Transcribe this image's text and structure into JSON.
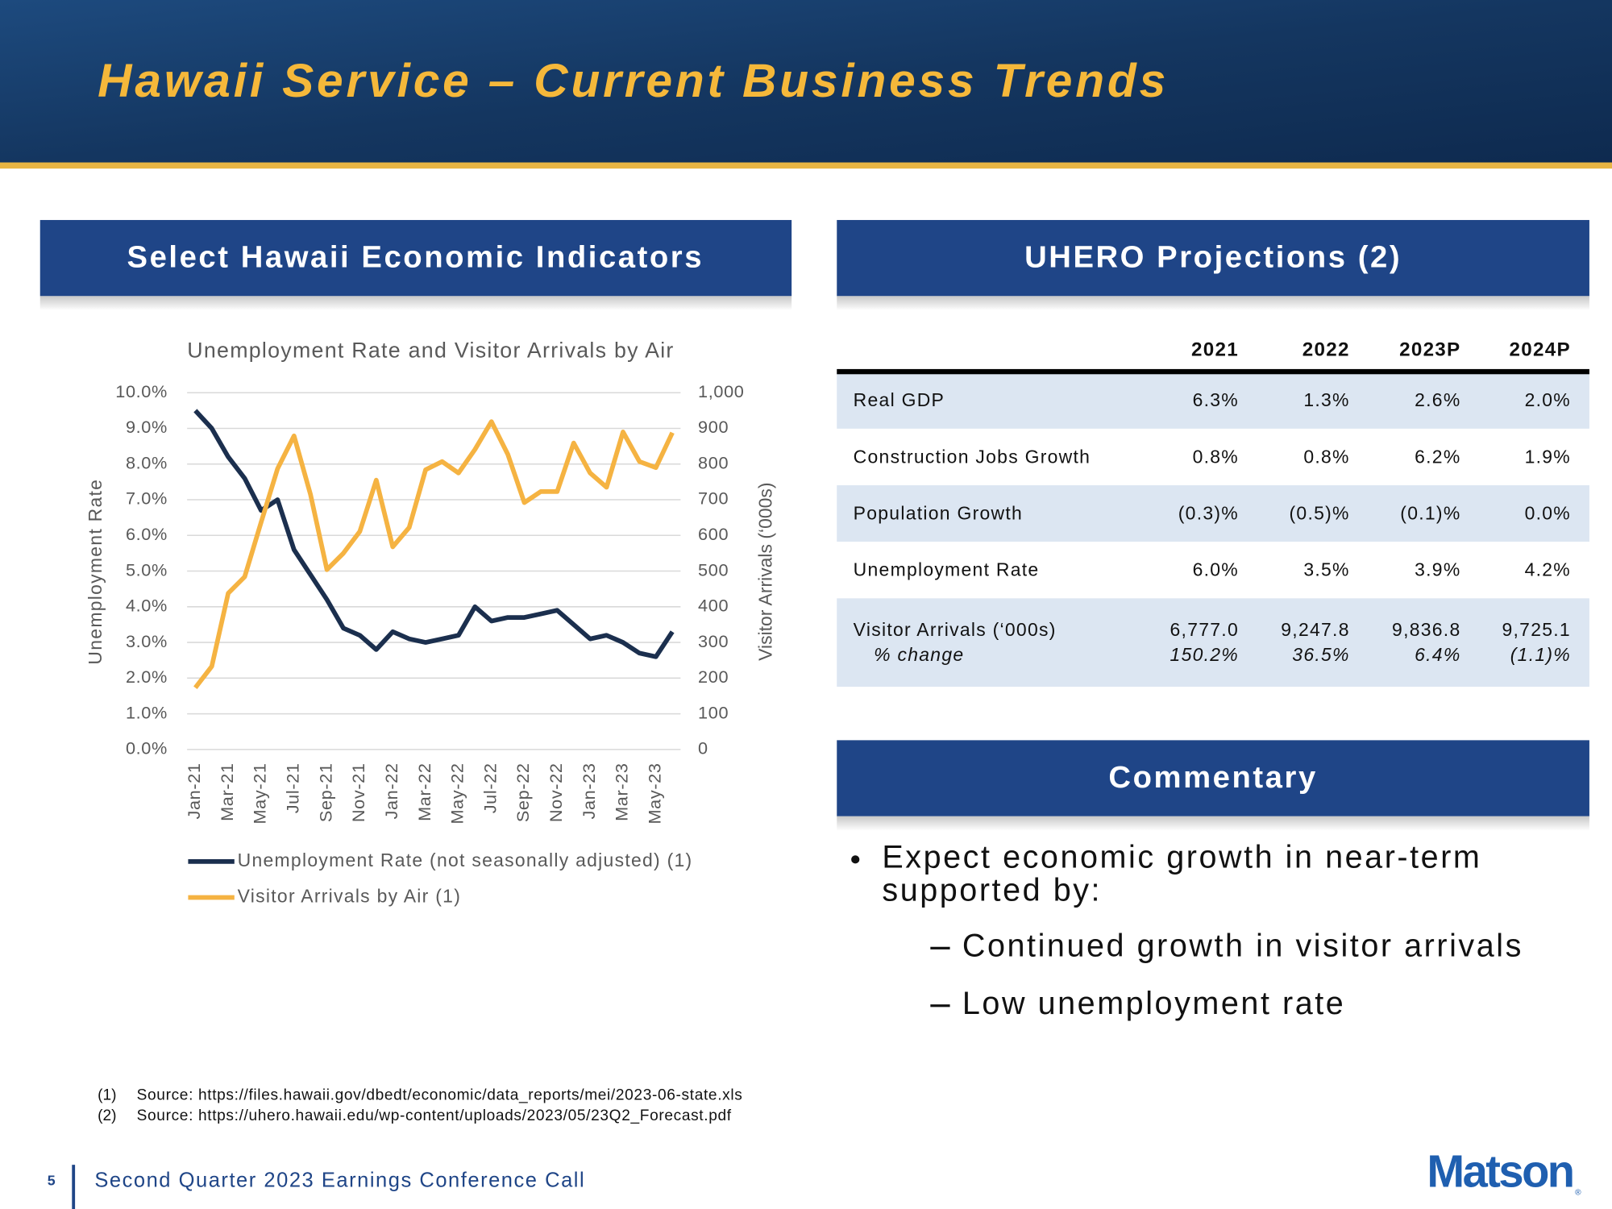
{
  "header": {
    "title": "Hawaii Service – Current Business Trends"
  },
  "left_panel": {
    "title": "Select Hawaii Economic Indicators"
  },
  "chart_data": {
    "type": "line",
    "title": "Unemployment Rate and Visitor Arrivals by Air",
    "y_label": "Unemployment Rate",
    "y2_label": "Visitor Arrivals (‘000s)",
    "categories": [
      "Jan-21",
      null,
      "Mar-21",
      null,
      "May-21",
      null,
      "Jul-21",
      null,
      "Sep-21",
      null,
      "Nov-21",
      null,
      "Jan-22",
      null,
      "Mar-22",
      null,
      "May-22",
      null,
      "Jul-22",
      null,
      "Sep-22",
      null,
      "Nov-22",
      null,
      "Jan-23",
      null,
      "Mar-23",
      null,
      "May-23",
      null
    ],
    "ylim": [
      0,
      10
    ],
    "yticks": [
      {
        "value": 0,
        "label": "0.0%"
      },
      {
        "value": 1,
        "label": "1.0%"
      },
      {
        "value": 2,
        "label": "2.0%"
      },
      {
        "value": 3,
        "label": "3.0%"
      },
      {
        "value": 4,
        "label": "4.0%"
      },
      {
        "value": 5,
        "label": "5.0%"
      },
      {
        "value": 6,
        "label": "6.0%"
      },
      {
        "value": 7,
        "label": "7.0%"
      },
      {
        "value": 8,
        "label": "8.0%"
      },
      {
        "value": 9,
        "label": "9.0%"
      },
      {
        "value": 10,
        "label": "10.0%"
      }
    ],
    "y2lim": [
      0,
      1000
    ],
    "y2ticks": [
      0,
      100,
      200,
      300,
      400,
      500,
      600,
      700,
      800,
      900,
      {
        "value": 1000,
        "label": "1,000"
      }
    ],
    "grid": true,
    "series": [
      {
        "name": "Unemployment Rate (not seasonally adjusted) (1)",
        "color": "#1b2f4e",
        "axis": "y",
        "values": [
          9.5,
          9.0,
          8.2,
          7.6,
          6.7,
          7.0,
          5.6,
          4.9,
          4.2,
          3.4,
          3.2,
          2.8,
          3.3,
          3.1,
          3.0,
          3.1,
          3.2,
          4.0,
          3.6,
          3.7,
          3.7,
          3.8,
          3.9,
          3.5,
          3.1,
          3.2,
          3.0,
          2.7,
          2.6,
          3.3
        ]
      },
      {
        "name": "Visitor Arrivals by Air (1)",
        "color": "#f5b342",
        "axis": "y2",
        "values": [
          173,
          233,
          438,
          484,
          637,
          787,
          879,
          715,
          504,
          550,
          611,
          755,
          568,
          622,
          784,
          807,
          775,
          841,
          919,
          827,
          692,
          723,
          723,
          859,
          775,
          735,
          890,
          807,
          790,
          888
        ]
      }
    ]
  },
  "right_panel": {
    "title": "UHERO Projections (2)"
  },
  "table": {
    "columns": [
      "2021",
      "2022",
      "2023P",
      "2024P"
    ],
    "rows": [
      {
        "label": "Real GDP",
        "values": [
          "6.3%",
          "1.3%",
          "2.6%",
          "2.0%"
        ]
      },
      {
        "label": "Construction Jobs Growth",
        "values": [
          "0.8%",
          "0.8%",
          "6.2%",
          "1.9%"
        ]
      },
      {
        "label": "Population Growth",
        "values": [
          "(0.3)%",
          "(0.5)%",
          "(0.1)%",
          "0.0%"
        ]
      },
      {
        "label": "Unemployment Rate",
        "values": [
          "6.0%",
          "3.5%",
          "3.9%",
          "4.2%"
        ]
      },
      {
        "label": "Visitor Arrivals  (‘000s)",
        "values": [
          "6,777.0",
          "9,247.8",
          "9,836.8",
          "9,725.1"
        ],
        "sublabel": "% change",
        "subvalues": [
          "150.2%",
          "36.5%",
          "6.4%",
          "(1.1)%"
        ]
      }
    ]
  },
  "commentary": {
    "title": "Commentary",
    "bullet": [
      "Expect economic growth in near-term",
      "supported by:"
    ],
    "subitems": [
      "Continued growth in visitor arrivals",
      "Low unemployment rate"
    ]
  },
  "footnotes": [
    {
      "marker": "(1)",
      "text": "Source: https://files.hawaii.gov/dbedt/economic/data_reports/mei/2023-06-state.xls"
    },
    {
      "marker": "(2)",
      "text": "Source: https://uhero.hawaii.edu/wp-content/uploads/2023/05/23Q2_Forecast.pdf"
    }
  ],
  "footer": {
    "page": "5",
    "text": "Second Quarter 2023 Earnings Conference Call",
    "logo": "Matson",
    "logo_mark": "®"
  }
}
